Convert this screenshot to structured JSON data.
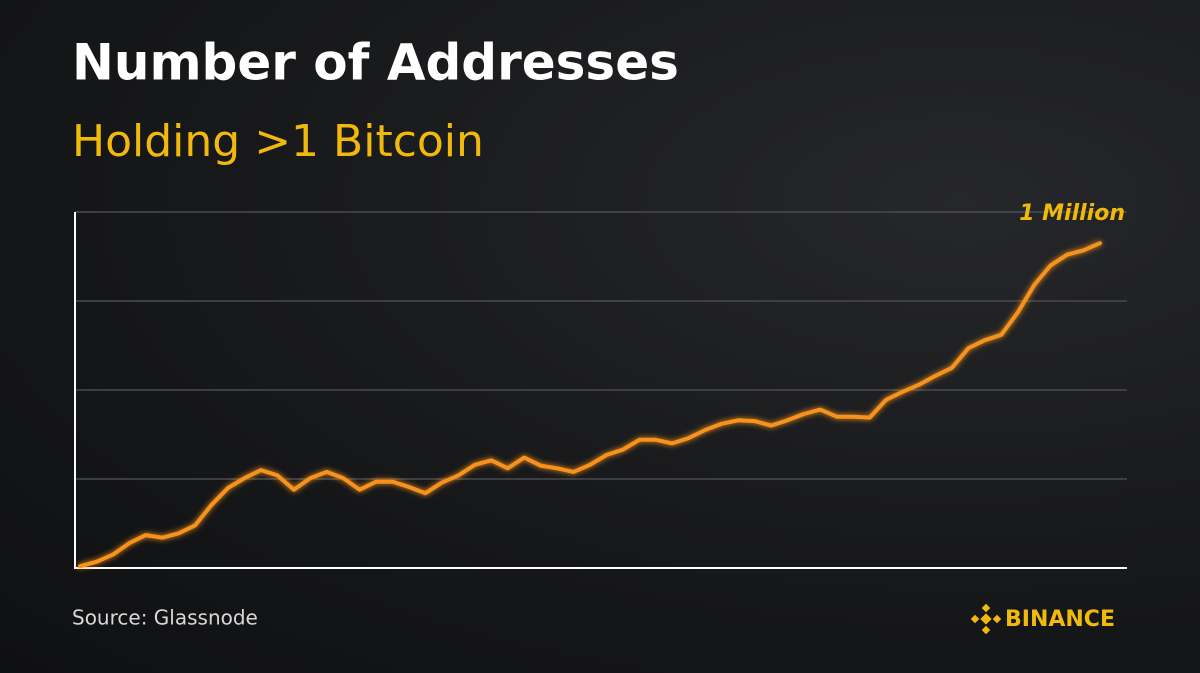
{
  "chart_data": {
    "type": "line",
    "title": "Number of Addresses",
    "subtitle": "Holding >1 Bitcoin",
    "annotation": "1 Million",
    "source": "Source: Glassnode",
    "brand": "BINANCE",
    "color": "#f7931a",
    "ylim": [
      0,
      4
    ],
    "grid_values": [
      1,
      2,
      3,
      4
    ],
    "values": [
      0.02,
      0.07,
      0.15,
      0.28,
      0.37,
      0.34,
      0.39,
      0.48,
      0.71,
      0.9,
      1.01,
      1.1,
      1.04,
      0.88,
      1.01,
      1.08,
      1.01,
      0.88,
      0.97,
      0.97,
      0.91,
      0.84,
      0.96,
      1.04,
      1.16,
      1.21,
      1.12,
      1.24,
      1.15,
      1.12,
      1.08,
      1.16,
      1.27,
      1.33,
      1.44,
      1.44,
      1.4,
      1.46,
      1.55,
      1.62,
      1.66,
      1.65,
      1.6,
      1.66,
      1.73,
      1.78,
      1.7,
      1.7,
      1.69,
      1.89,
      1.98,
      2.06,
      2.16,
      2.25,
      2.47,
      2.56,
      2.62,
      2.87,
      3.18,
      3.4,
      3.52,
      3.57,
      3.65
    ]
  }
}
